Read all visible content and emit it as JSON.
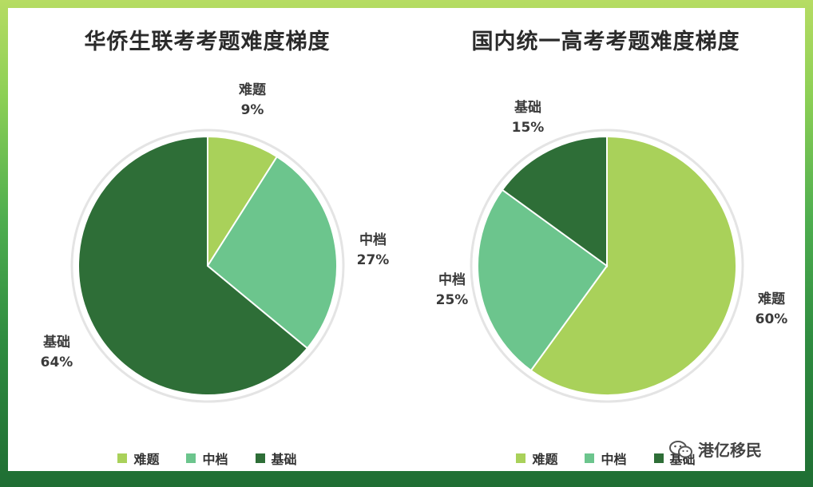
{
  "colors": {
    "难题": "#a9d15a",
    "中档": "#6cc58d",
    "基础": "#2e6e37"
  },
  "chart_data": [
    {
      "type": "pie",
      "title": "华侨生联考考题难度梯度",
      "labels": [
        "难题",
        "中档",
        "基础"
      ],
      "values": [
        9,
        27,
        64
      ],
      "value_labels": [
        "9%",
        "27%",
        "64%"
      ],
      "legend": [
        "难题",
        "中档",
        "基础"
      ],
      "legend_position": "bottom"
    },
    {
      "type": "pie",
      "title": "国内统一高考考题难度梯度",
      "labels": [
        "难题",
        "中档",
        "基础"
      ],
      "values": [
        60,
        25,
        15
      ],
      "value_labels": [
        "60%",
        "25%",
        "15%"
      ],
      "legend": [
        "难题",
        "中档",
        "基础"
      ],
      "legend_position": "bottom"
    }
  ],
  "watermark": {
    "text": "港亿移民",
    "icon": "wechat-icon"
  }
}
